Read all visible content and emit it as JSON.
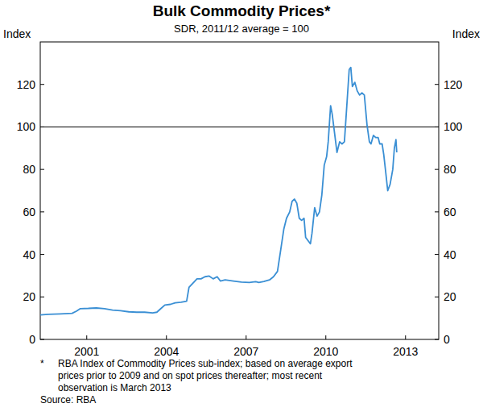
{
  "chart_data": {
    "type": "line",
    "title": "Bulk Commodity Prices*",
    "subtitle": "SDR, 2011/12 average = 100",
    "y_label": "Index",
    "footnote": [
      "*",
      "RBA Index of Commodity Prices sub-index; based on average export",
      "prices prior to 2009 and on spot prices thereafter; most recent",
      "observation is March 2013"
    ],
    "source": "Source: RBA",
    "x": [
      1999.75,
      2000.05,
      2000.5,
      2000.95,
      2001.11,
      2001.26,
      2001.56,
      2001.86,
      2002.17,
      2002.47,
      2002.77,
      2003.08,
      2003.38,
      2003.68,
      2003.98,
      2004.14,
      2004.29,
      2004.44,
      2004.65,
      2004.83,
      2005.05,
      2005.26,
      2005.35,
      2005.5,
      2005.65,
      2005.8,
      2005.95,
      2006.11,
      2006.26,
      2006.41,
      2006.53,
      2006.71,
      2007.02,
      2007.32,
      2007.62,
      2007.86,
      2007.98,
      2008.17,
      2008.38,
      2008.53,
      2008.68,
      2008.8,
      2008.92,
      2009.02,
      2009.14,
      2009.23,
      2009.32,
      2009.41,
      2009.5,
      2009.59,
      2009.68,
      2009.74,
      2009.86,
      2009.92,
      2009.98,
      2010.08,
      2010.17,
      2010.26,
      2010.35,
      2010.44,
      2010.53,
      2010.59,
      2010.68,
      2010.74,
      2010.83,
      2010.92,
      2011.02,
      2011.11,
      2011.2,
      2011.29,
      2011.38,
      2011.44,
      2011.5,
      2011.59,
      2011.68,
      2011.77,
      2011.86,
      2011.95,
      2012.05,
      2012.14,
      2012.2,
      2012.29,
      2012.38,
      2012.47,
      2012.53,
      2012.62,
      2012.68,
      2012.77,
      2012.83,
      2012.92,
      2013.02,
      2013.08,
      2013.14,
      2013.17
    ],
    "series": [
      {
        "name": "Bulk commodity prices",
        "color": "#3a8fd4",
        "values": [
          11.5,
          11.8,
          12.0,
          12.3,
          13.3,
          14.5,
          14.6,
          14.8,
          14.5,
          13.8,
          13.5,
          13.0,
          12.8,
          12.8,
          12.5,
          12.8,
          14.5,
          16.2,
          16.5,
          17.2,
          17.5,
          18.0,
          24.5,
          26.5,
          28.5,
          28.5,
          29.5,
          29.8,
          28.5,
          29.5,
          27.5,
          28.0,
          27.5,
          27.0,
          26.8,
          27.2,
          26.8,
          27.3,
          28.0,
          29.5,
          32.0,
          42,
          52,
          57,
          60,
          65,
          66,
          64,
          57,
          56,
          57,
          48,
          46,
          45,
          50,
          62,
          58,
          60,
          68,
          82,
          86,
          93,
          110,
          106,
          97,
          88,
          93,
          92,
          93,
          110,
          127,
          128,
          119,
          121,
          117,
          115,
          116,
          115,
          101,
          93,
          92,
          96,
          95,
          95,
          92,
          92,
          87,
          77,
          70,
          73,
          80,
          90,
          94,
          88
        ]
      }
    ],
    "xlim": [
      1999.75,
      2014.75
    ],
    "xticks": [
      {
        "value": 2001.5,
        "label": "2001"
      },
      {
        "value": 2004.5,
        "label": "2004"
      },
      {
        "value": 2007.5,
        "label": "2007"
      },
      {
        "value": 2010.5,
        "label": "2010"
      },
      {
        "value": 2013.5,
        "label": "2013"
      }
    ],
    "ylim": [
      0,
      140
    ],
    "yticks": [
      0,
      20,
      40,
      60,
      80,
      100,
      120
    ],
    "reference_line": 100,
    "grid": false
  }
}
